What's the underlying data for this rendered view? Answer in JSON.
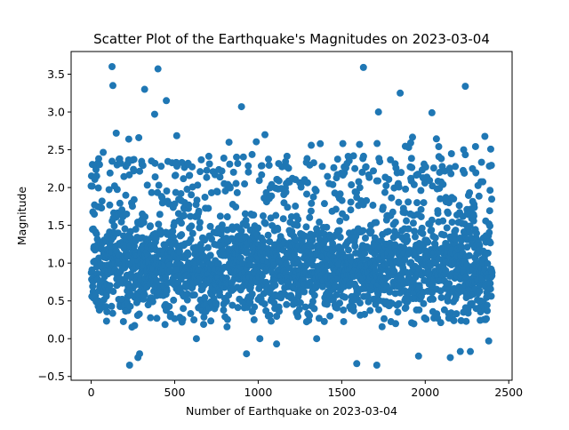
{
  "chart_data": {
    "type": "scatter",
    "title": "Scatter Plot of the Earthquake's Magnitudes on 2023-03-04",
    "xlabel": "Number of Earthquake on 2023-03-04",
    "ylabel": "Magnitude",
    "xlim": [
      -120,
      2520
    ],
    "ylim": [
      -0.55,
      3.8
    ],
    "xticks": [
      0,
      500,
      1000,
      1500,
      2000,
      2500
    ],
    "xtick_labels": [
      "0",
      "500",
      "1000",
      "1500",
      "2000",
      "2500"
    ],
    "yticks": [
      -0.5,
      0.0,
      0.5,
      1.0,
      1.5,
      2.0,
      2.5,
      3.0,
      3.5
    ],
    "ytick_labels": [
      "−0.5",
      "0.0",
      "0.5",
      "1.0",
      "1.5",
      "2.0",
      "2.5",
      "3.0",
      "3.5"
    ],
    "grid": false,
    "legend": "none",
    "marker_color": "#1f77b4",
    "point_count_approx": 2400,
    "notable_points": [
      {
        "x": 125,
        "y": 3.6
      },
      {
        "x": 130,
        "y": 3.35
      },
      {
        "x": 150,
        "y": 2.72
      },
      {
        "x": 320,
        "y": 3.3
      },
      {
        "x": 400,
        "y": 3.57
      },
      {
        "x": 450,
        "y": 3.15
      },
      {
        "x": 380,
        "y": 2.97
      },
      {
        "x": 900,
        "y": 3.07
      },
      {
        "x": 1630,
        "y": 3.59
      },
      {
        "x": 1720,
        "y": 3.0
      },
      {
        "x": 1850,
        "y": 3.25
      },
      {
        "x": 2040,
        "y": 2.99
      },
      {
        "x": 2240,
        "y": 3.34
      },
      {
        "x": 2230,
        "y": 2.5
      },
      {
        "x": 230,
        "y": -0.35
      },
      {
        "x": 280,
        "y": -0.25
      },
      {
        "x": 290,
        "y": -0.2
      },
      {
        "x": 930,
        "y": -0.2
      },
      {
        "x": 1010,
        "y": 0.0
      },
      {
        "x": 1590,
        "y": -0.33
      },
      {
        "x": 1710,
        "y": -0.35
      },
      {
        "x": 1960,
        "y": -0.23
      },
      {
        "x": 2150,
        "y": -0.25
      },
      {
        "x": 2210,
        "y": -0.17
      },
      {
        "x": 2270,
        "y": -0.17
      },
      {
        "x": 2380,
        "y": -0.03
      },
      {
        "x": 630,
        "y": 0.0
      },
      {
        "x": 1350,
        "y": 0.0
      },
      {
        "x": 1110,
        "y": -0.07
      }
    ],
    "distribution": {
      "x_min": 0,
      "x_max": 2400,
      "typical_range": [
        0.2,
        1.6
      ],
      "center": 0.95,
      "upper_sparse_range": [
        1.6,
        3.0
      ]
    }
  }
}
